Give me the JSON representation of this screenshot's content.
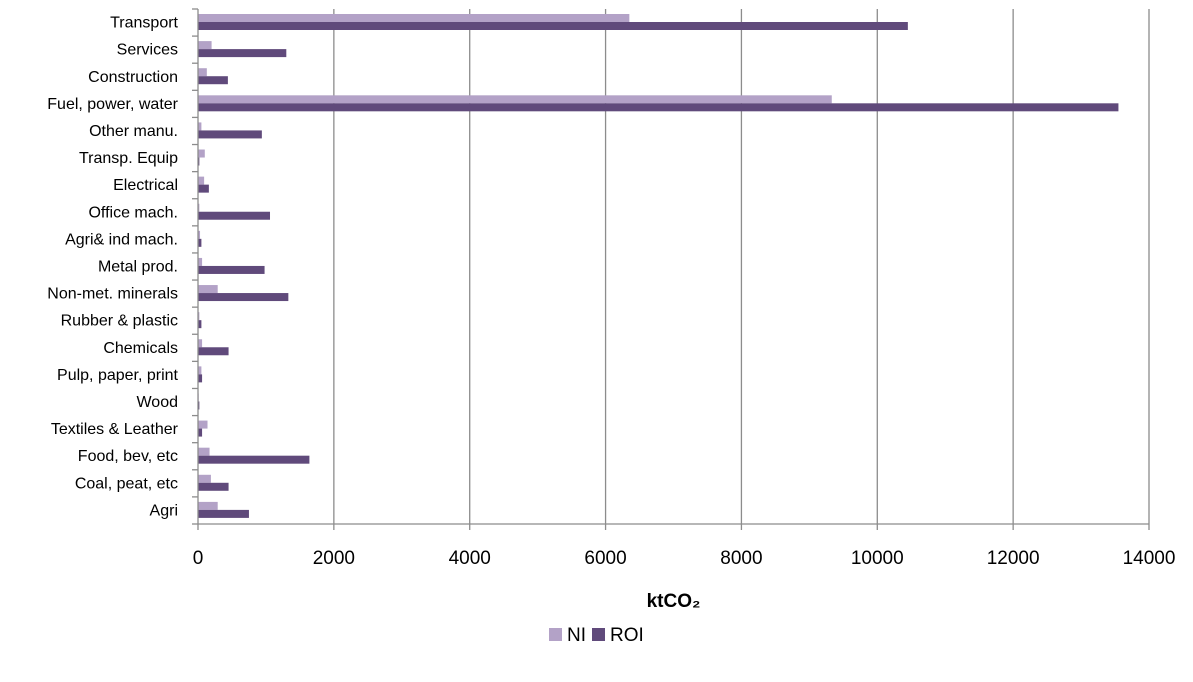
{
  "chart_data": {
    "type": "bar",
    "orientation": "horizontal",
    "categories": [
      "Transport",
      "Services",
      "Construction",
      "Fuel, power, water",
      "Other manu.",
      "Transp. Equip",
      "Electrical",
      "Office mach.",
      "Agri& ind mach.",
      "Metal prod.",
      "Non-met. minerals",
      "Rubber & plastic",
      "Chemicals",
      "Pulp, paper, print",
      "Wood",
      "Textiles & Leather",
      "Food, bev, etc",
      "Coal, peat, etc",
      "Agri"
    ],
    "series": [
      {
        "name": "NI",
        "color": "#b3a2c7",
        "values": [
          6350,
          200,
          130,
          9330,
          50,
          100,
          90,
          20,
          30,
          60,
          290,
          20,
          60,
          50,
          10,
          140,
          170,
          190,
          290
        ]
      },
      {
        "name": "ROI",
        "color": "#604a7b",
        "values": [
          10450,
          1300,
          440,
          13550,
          940,
          20,
          160,
          1060,
          50,
          980,
          1330,
          50,
          450,
          60,
          20,
          60,
          1640,
          450,
          750
        ]
      }
    ],
    "xlabel": "ktCO₂",
    "ylabel": "",
    "xlim": [
      0,
      14000
    ],
    "ticks": [
      "0",
      "2000",
      "4000",
      "6000",
      "8000",
      "10000",
      "12000",
      "14000"
    ],
    "grid": "vertical",
    "legend": "bottom"
  }
}
